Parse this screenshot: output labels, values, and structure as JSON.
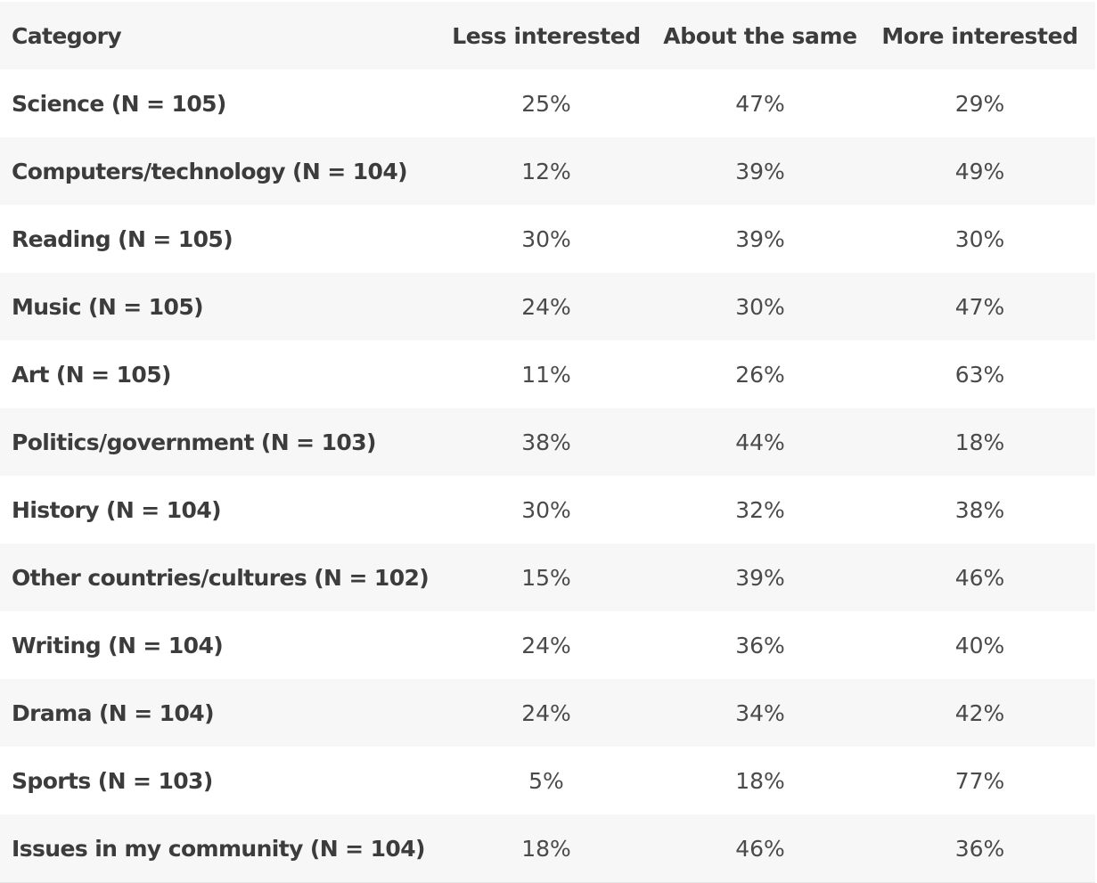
{
  "table": {
    "headers": [
      "Category",
      "Less interested",
      "About the same",
      "More interested"
    ],
    "rows": [
      {
        "category": "Science (N = 105)",
        "less": "25%",
        "same": "47%",
        "more": "29%"
      },
      {
        "category": "Computers/technology (N = 104)",
        "less": "12%",
        "same": "39%",
        "more": "49%"
      },
      {
        "category": "Reading (N = 105)",
        "less": "30%",
        "same": "39%",
        "more": "30%"
      },
      {
        "category": "Music (N = 105)",
        "less": "24%",
        "same": "30%",
        "more": "47%"
      },
      {
        "category": "Art (N = 105)",
        "less": "11%",
        "same": "26%",
        "more": "63%"
      },
      {
        "category": "Politics/government (N = 103)",
        "less": "38%",
        "same": "44%",
        "more": "18%"
      },
      {
        "category": "History (N = 104)",
        "less": "30%",
        "same": "32%",
        "more": "38%"
      },
      {
        "category": "Other countries/cultures (N = 102)",
        "less": "15%",
        "same": "39%",
        "more": "46%"
      },
      {
        "category": "Writing (N = 104)",
        "less": "24%",
        "same": "36%",
        "more": "40%"
      },
      {
        "category": "Drama (N = 104)",
        "less": "24%",
        "same": "34%",
        "more": "42%"
      },
      {
        "category": "Sports (N = 103)",
        "less": "5%",
        "same": "18%",
        "more": "77%"
      },
      {
        "category": "Issues in my community (N = 104)",
        "less": "18%",
        "same": "46%",
        "more": "36%"
      }
    ]
  }
}
